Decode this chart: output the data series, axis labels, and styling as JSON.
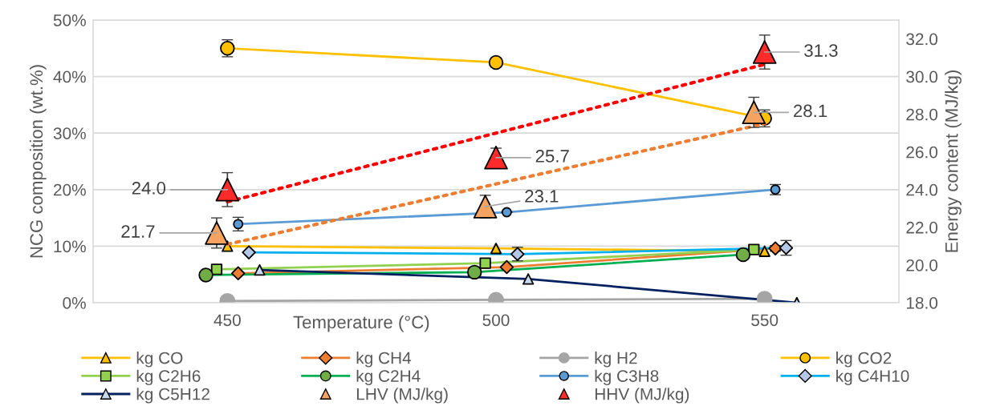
{
  "chart_data": {
    "type": "line",
    "xlabel": "Temperature (°C)",
    "ylabel": "NCG composition (wt.%)",
    "y2label": "Energy content (MJ/kg)",
    "xlim": [
      425,
      575
    ],
    "xticks": [
      450,
      500,
      550
    ],
    "ylim": [
      0,
      50
    ],
    "yticks": [
      {
        "value": 0,
        "label": "0%"
      },
      {
        "value": 10,
        "label": "10%"
      },
      {
        "value": 20,
        "label": "20%"
      },
      {
        "value": 30,
        "label": "30%"
      },
      {
        "value": 40,
        "label": "40%"
      },
      {
        "value": 50,
        "label": "50%"
      }
    ],
    "y2lim": [
      18,
      33
    ],
    "y2ticks": [
      {
        "value": 18,
        "label": "18.0"
      },
      {
        "value": 20,
        "label": "20.0"
      },
      {
        "value": 22,
        "label": "22.0"
      },
      {
        "value": 24,
        "label": "24.0"
      },
      {
        "value": 26,
        "label": "26.0"
      },
      {
        "value": 28,
        "label": "28.0"
      },
      {
        "value": 30,
        "label": "30.0"
      },
      {
        "value": 32,
        "label": "32.0"
      }
    ],
    "grid": "y",
    "legend": "bottom",
    "line_style": "solid",
    "series": [
      {
        "name": "kg CO",
        "color": "#ffc000",
        "marker": "triangle",
        "x": [
          450,
          500,
          550
        ],
        "values": [
          10.0,
          9.6,
          9.1
        ]
      },
      {
        "name": "kg CH4",
        "color": "#ed7d31",
        "marker": "diamond",
        "x": [
          452,
          502,
          552
        ],
        "values": [
          5.2,
          6.3,
          9.6
        ],
        "errors": [
          null,
          null,
          0.5
        ]
      },
      {
        "name": "kg H2",
        "color": "#a5a5a5",
        "marker": "circle",
        "x": [
          450,
          500,
          550
        ],
        "values": [
          0.3,
          0.5,
          0.7
        ]
      },
      {
        "name": "kg CO2",
        "color": "#ffc000",
        "marker": "circle",
        "x": [
          450,
          500,
          550
        ],
        "values": [
          45,
          42.5,
          32.6
        ],
        "errors": [
          1.5,
          null,
          1.5
        ]
      },
      {
        "name": "kg C2H6",
        "color": "#92d050",
        "marker": "square",
        "x": [
          448,
          498,
          548
        ],
        "values": [
          5.9,
          7.0,
          9.4
        ]
      },
      {
        "name": "kg C2H4",
        "color": "#00b050",
        "marker": "circle",
        "x": [
          446,
          496,
          546
        ],
        "values": [
          4.9,
          5.4,
          8.5
        ]
      },
      {
        "name": "kg C3H8",
        "color": "#5b9bd5",
        "marker": "circle",
        "x": [
          452,
          502,
          552
        ],
        "values": [
          13.9,
          16.0,
          20.0
        ],
        "errors": [
          1.2,
          null,
          0.9
        ]
      },
      {
        "name": "kg C4H10",
        "color": "#00b0f0",
        "marker": "diamond",
        "x": [
          454,
          504,
          554
        ],
        "values": [
          8.9,
          8.6,
          9.7
        ],
        "errors": [
          null,
          1.2,
          1.3
        ]
      },
      {
        "name": "kg C5H12",
        "color": "#002060",
        "marker": "triangle",
        "x": [
          456,
          506,
          556
        ],
        "values": [
          5.8,
          4.2,
          0
        ]
      },
      {
        "name": "LHV (MJ/kg)",
        "type": "scatter",
        "axis": "y2",
        "color": "#f4a460",
        "marker": "triangle",
        "x": [
          448,
          498,
          548
        ],
        "values": [
          21.7,
          23.1,
          28.1
        ],
        "errors": [
          0.8,
          0.6,
          0.8
        ],
        "value_labels": [
          "21.7",
          "23.1",
          "28.1"
        ]
      },
      {
        "name": "HHV (MJ/kg)",
        "type": "scatter",
        "axis": "y2",
        "color": "#ff2a2a",
        "marker": "triangle",
        "x": [
          450,
          500,
          550
        ],
        "values": [
          24.0,
          25.7,
          31.3
        ],
        "errors": [
          0.9,
          0.5,
          0.9
        ],
        "value_labels": [
          "24.0",
          "25.7",
          "31.3"
        ]
      },
      {
        "type": "line",
        "axis": "y2",
        "color": "#ed7d31",
        "line_style": "dotted",
        "marker": "none",
        "x": [
          450,
          550
        ],
        "values": [
          21.1,
          27.5
        ]
      },
      {
        "type": "line",
        "axis": "y2",
        "color": "#ff0000",
        "line_style": "dotted",
        "marker": "none",
        "x": [
          450,
          550
        ],
        "values": [
          23.35,
          30.65
        ]
      }
    ]
  }
}
